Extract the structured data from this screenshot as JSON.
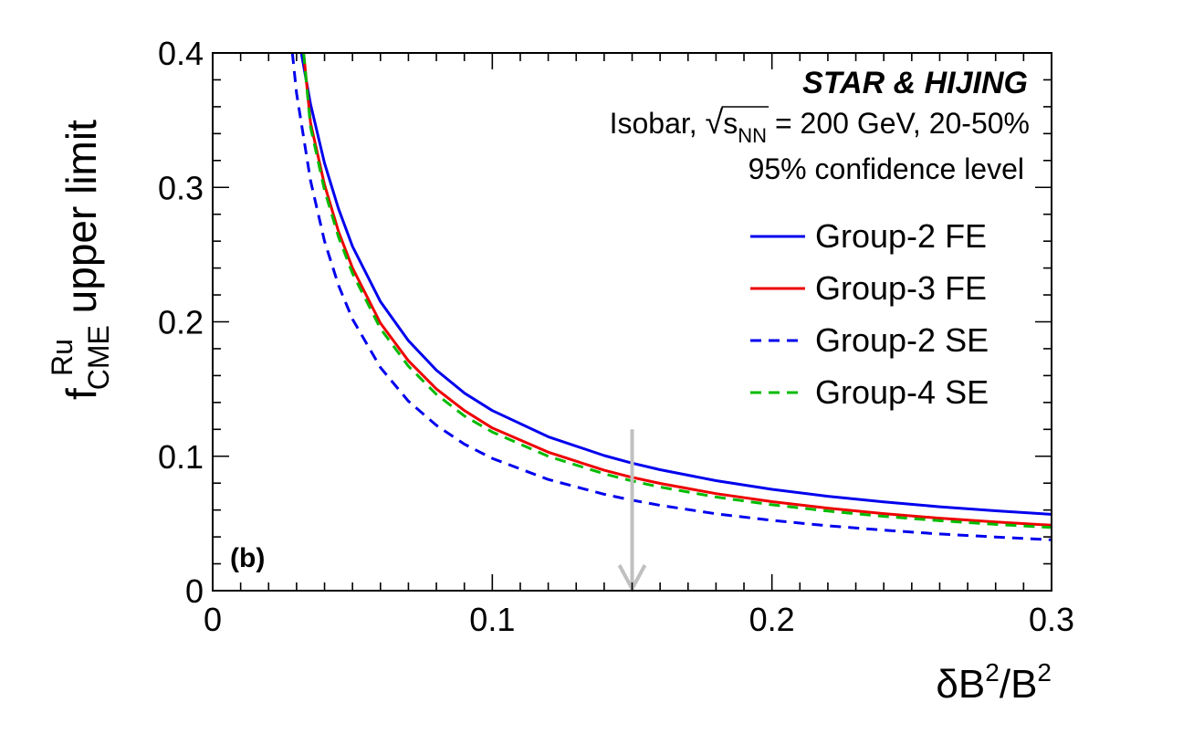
{
  "chart_data": {
    "type": "line",
    "title": "",
    "xlabel": {
      "main": "δB",
      "sup1": "2",
      "mid": "/B",
      "sup2": "2"
    },
    "ylabel": {
      "base": "f",
      "sup": "Ru",
      "sub": "CME",
      "rest": " upper limit"
    },
    "xlim": [
      0,
      0.3
    ],
    "ylim": [
      0,
      0.4
    ],
    "x_ticks": [
      {
        "value": 0,
        "label": "0"
      },
      {
        "value": 0.1,
        "label": "0.1"
      },
      {
        "value": 0.2,
        "label": "0.2"
      },
      {
        "value": 0.3,
        "label": "0.3"
      }
    ],
    "y_ticks": [
      {
        "value": 0,
        "label": "0"
      },
      {
        "value": 0.1,
        "label": "0.1"
      },
      {
        "value": 0.2,
        "label": "0.2"
      },
      {
        "value": 0.3,
        "label": "0.3"
      },
      {
        "value": 0.4,
        "label": "0.4"
      }
    ],
    "grid": false,
    "legend_position": "right",
    "annotations": {
      "experiment": "STAR & HIJING",
      "line2_prefix": "Isobar, ",
      "sqrt_s": "s",
      "sqrt_sub": "NN",
      "line2_suffix": " = 200 GeV, 20-50%",
      "line3": "95% confidence level",
      "panel": "(b)"
    },
    "arrow": {
      "x": 0.15,
      "y_from": 0.12,
      "y_to": 0.0,
      "color": "#c0c0c0"
    },
    "series": [
      {
        "name": "Group-2 FE",
        "color": "#0000ee",
        "dash": "solid",
        "x": [
          0.0317,
          0.035,
          0.04,
          0.045,
          0.05,
          0.06,
          0.07,
          0.08,
          0.09,
          0.1,
          0.12,
          0.14,
          0.15,
          0.16,
          0.18,
          0.2,
          0.22,
          0.24,
          0.26,
          0.28,
          0.3
        ],
        "y": [
          0.4,
          0.362,
          0.318,
          0.284,
          0.256,
          0.215,
          0.186,
          0.164,
          0.147,
          0.134,
          0.1145,
          0.1005,
          0.0949,
          0.09,
          0.0818,
          0.0754,
          0.0702,
          0.066,
          0.0624,
          0.0594,
          0.0568
        ]
      },
      {
        "name": "Group-3 FE",
        "color": "#ee0000",
        "dash": "solid",
        "x": [
          0.0325,
          0.035,
          0.04,
          0.045,
          0.05,
          0.06,
          0.07,
          0.08,
          0.09,
          0.1,
          0.12,
          0.14,
          0.15,
          0.16,
          0.18,
          0.2,
          0.22,
          0.24,
          0.26,
          0.28,
          0.3
        ],
        "y": [
          0.4,
          0.348,
          0.302,
          0.267,
          0.24,
          0.199,
          0.171,
          0.15,
          0.134,
          0.121,
          0.103,
          0.0896,
          0.0843,
          0.0798,
          0.0722,
          0.0662,
          0.0614,
          0.0573,
          0.0539,
          0.0511,
          0.0487
        ]
      },
      {
        "name": "Group-2 SE",
        "color": "#0000ee",
        "dash": "dashed",
        "x": [
          0.0285,
          0.03,
          0.035,
          0.04,
          0.045,
          0.05,
          0.06,
          0.07,
          0.08,
          0.09,
          0.1,
          0.12,
          0.14,
          0.15,
          0.16,
          0.18,
          0.2,
          0.22,
          0.24,
          0.26,
          0.28,
          0.3
        ],
        "y": [
          0.4,
          0.37,
          0.305,
          0.26,
          0.227,
          0.202,
          0.166,
          0.141,
          0.123,
          0.109,
          0.0984,
          0.0827,
          0.0717,
          0.0673,
          0.0635,
          0.0572,
          0.0523,
          0.0483,
          0.045,
          0.0422,
          0.0399,
          0.0378
        ]
      },
      {
        "name": "Group-4 SE",
        "color": "#00bb00",
        "dash": "dashed",
        "x": [
          0.0325,
          0.035,
          0.04,
          0.045,
          0.05,
          0.06,
          0.07,
          0.08,
          0.09,
          0.1,
          0.12,
          0.14,
          0.15,
          0.16,
          0.18,
          0.2,
          0.22,
          0.24,
          0.26,
          0.28,
          0.3
        ],
        "y": [
          0.4,
          0.345,
          0.298,
          0.263,
          0.236,
          0.195,
          0.167,
          0.146,
          0.13,
          0.118,
          0.1,
          0.0869,
          0.0816,
          0.0771,
          0.0697,
          0.0639,
          0.0592,
          0.0553,
          0.052,
          0.0493,
          0.047
        ]
      }
    ]
  }
}
